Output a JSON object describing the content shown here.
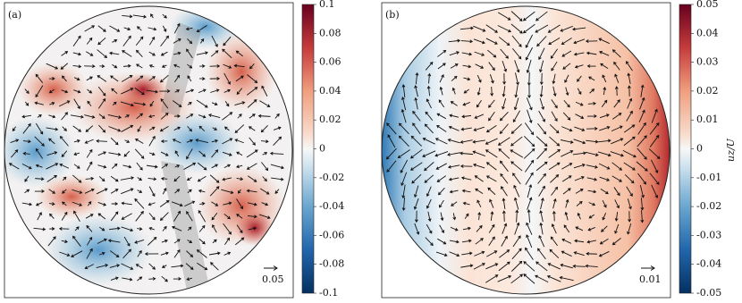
{
  "chart_data": [
    {
      "type": "heatmap",
      "label": "(a)",
      "zlim": [
        -0.1,
        0.1
      ],
      "zticks": [
        0.1,
        0.08,
        0.06,
        0.04,
        0.02,
        0,
        -0.02,
        -0.04,
        -0.06,
        -0.08,
        -0.1
      ],
      "reference_arrow": 0.05
    },
    {
      "type": "heatmap",
      "label": "(b)",
      "zlim": [
        -0.05,
        0.05
      ],
      "zticks": [
        0.05,
        0.04,
        0.03,
        0.02,
        0.01,
        0,
        -0.01,
        -0.02,
        -0.03,
        -0.04,
        -0.05
      ],
      "reference_arrow": 0.01,
      "colorbar_label": "uz/U"
    }
  ]
}
